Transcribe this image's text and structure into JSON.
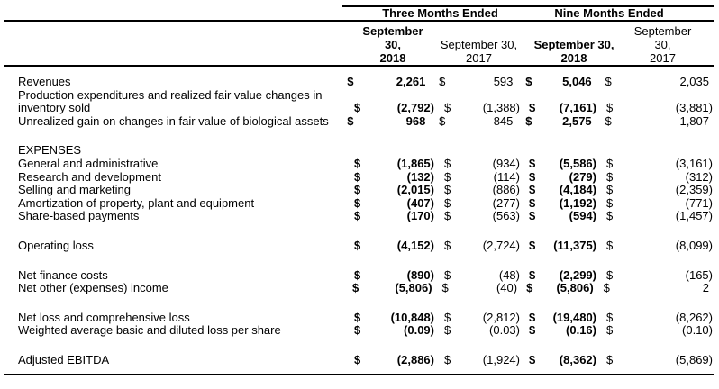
{
  "currency": "$",
  "header": {
    "group_three": "Three Months Ended",
    "group_nine": "Nine Months Ended",
    "cols": [
      {
        "l1": "September",
        "l2": "30,",
        "l3": "2018"
      },
      {
        "l1": "September 30,",
        "l2": "2017"
      },
      {
        "l1": "September 30,",
        "l2": "2018"
      },
      {
        "l1": "September",
        "l2": "30,",
        "l3": "2017"
      }
    ]
  },
  "rows": [
    {
      "type": "data",
      "label": "Revenues",
      "c1": "2,261",
      "c2": "593",
      "c3": "5,046",
      "c4": "2,035"
    },
    {
      "type": "data",
      "label": "Production expenditures and realized fair value changes in inventory sold",
      "c1": "(2,792)",
      "c2": "(1,388)",
      "c3": "(7,161)",
      "c4": "(3,881)"
    },
    {
      "type": "data",
      "label": "Unrealized gain on changes in fair value of biological assets",
      "c1": "968",
      "c2": "845",
      "c3": "2,575",
      "c4": "1,807"
    },
    {
      "type": "spacer"
    },
    {
      "type": "heading",
      "label": "EXPENSES"
    },
    {
      "type": "data",
      "label": "General and administrative",
      "c1": "(1,865)",
      "c2": "(934)",
      "c3": "(5,586)",
      "c4": "(3,161)"
    },
    {
      "type": "data",
      "label": "Research and development",
      "c1": "(132)",
      "c2": "(114)",
      "c3": "(279)",
      "c4": "(312)"
    },
    {
      "type": "data",
      "label": "Selling and marketing",
      "c1": "(2,015)",
      "c2": "(886)",
      "c3": "(4,184)",
      "c4": "(2,359)"
    },
    {
      "type": "data",
      "label": "Amortization of property, plant and equipment",
      "c1": "(407)",
      "c2": "(277)",
      "c3": "(1,192)",
      "c4": "(771)"
    },
    {
      "type": "data",
      "label": "Share-based payments",
      "c1": "(170)",
      "c2": "(563)",
      "c3": "(594)",
      "c4": "(1,457)"
    },
    {
      "type": "spacer"
    },
    {
      "type": "data",
      "label": "Operating loss",
      "c1": "(4,152)",
      "c2": "(2,724)",
      "c3": "(11,375)",
      "c4": "(8,099)"
    },
    {
      "type": "spacer"
    },
    {
      "type": "data",
      "label": "Net finance costs",
      "c1": "(890)",
      "c2": "(48)",
      "c3": "(2,299)",
      "c4": "(165)"
    },
    {
      "type": "data",
      "label": "Net other (expenses) income",
      "c1": "(5,806)",
      "c2": "(40)",
      "c3": "(5,806)",
      "c4": "2"
    },
    {
      "type": "spacer"
    },
    {
      "type": "data",
      "label": "Net loss and comprehensive loss",
      "c1": "(10,848)",
      "c2": "(2,812)",
      "c3": "(19,480)",
      "c4": "(8,262)"
    },
    {
      "type": "data",
      "label": "Weighted average basic and diluted loss per share",
      "c1": "(0.09)",
      "c2": "(0.03)",
      "c3": "(0.16)",
      "c4": "(0.10)"
    },
    {
      "type": "spacer"
    },
    {
      "type": "data",
      "label": "Adjusted EBITDA",
      "c1": "(2,886)",
      "c2": "(1,924)",
      "c3": "(8,362)",
      "c4": "(5,869)"
    }
  ]
}
